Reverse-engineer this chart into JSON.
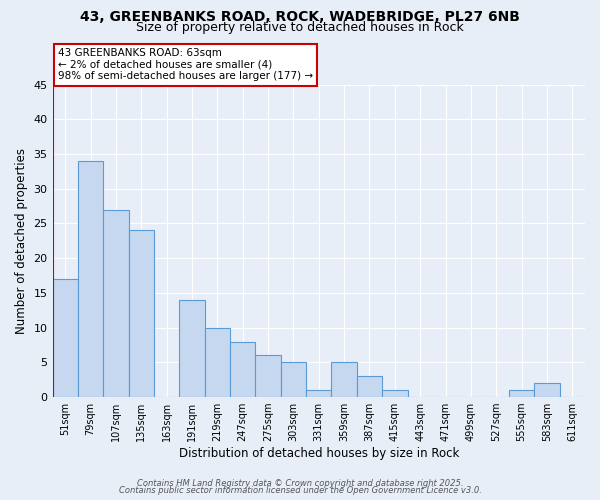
{
  "title_line1": "43, GREENBANKS ROAD, ROCK, WADEBRIDGE, PL27 6NB",
  "title_line2": "Size of property relative to detached houses in Rock",
  "xlabel": "Distribution of detached houses by size in Rock",
  "ylabel": "Number of detached properties",
  "bar_labels": [
    "51sqm",
    "79sqm",
    "107sqm",
    "135sqm",
    "163sqm",
    "191sqm",
    "219sqm",
    "247sqm",
    "275sqm",
    "303sqm",
    "331sqm",
    "359sqm",
    "387sqm",
    "415sqm",
    "443sqm",
    "471sqm",
    "499sqm",
    "527sqm",
    "555sqm",
    "583sqm",
    "611sqm"
  ],
  "bar_values": [
    17,
    34,
    27,
    24,
    0,
    14,
    10,
    8,
    6,
    5,
    1,
    5,
    3,
    1,
    0,
    0,
    0,
    0,
    1,
    2,
    0
  ],
  "bar_color": "#c5d8f0",
  "bar_edge_color": "#5b9bd5",
  "highlight_color": "#cc0000",
  "ylim": [
    0,
    45
  ],
  "yticks": [
    0,
    5,
    10,
    15,
    20,
    25,
    30,
    35,
    40,
    45
  ],
  "annotation_title": "43 GREENBANKS ROAD: 63sqm",
  "annotation_line1": "← 2% of detached houses are smaller (4)",
  "annotation_line2": "98% of semi-detached houses are larger (177) →",
  "annotation_box_color": "#ffffff",
  "annotation_border_color": "#cc0000",
  "footer_line1": "Contains HM Land Registry data © Crown copyright and database right 2025.",
  "footer_line2": "Contains public sector information licensed under the Open Government Licence v3.0.",
  "bg_color": "#e8eef8",
  "grid_color": "#ffffff"
}
